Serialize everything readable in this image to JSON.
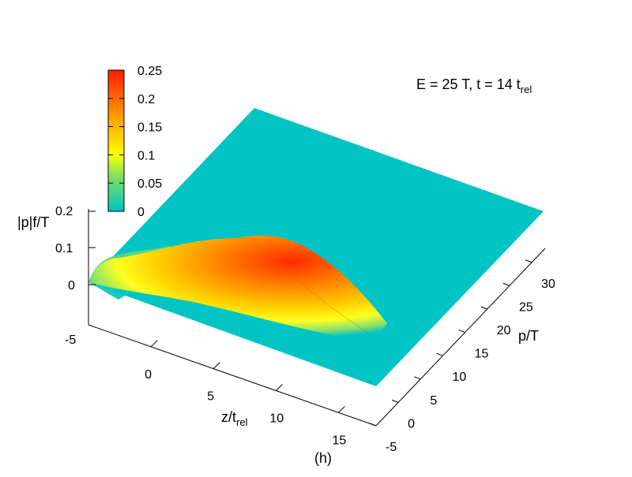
{
  "chart_data": {
    "type": "surface",
    "annotation": {
      "main": "E = 25 T, t = 14 t",
      "sub": "rel"
    },
    "panel_label": "(h)",
    "xlabel": {
      "main": "z/t",
      "sub": "rel"
    },
    "ylabel": "p/T",
    "zlabel": "|p|f/T",
    "x_ticks": [
      "0",
      "5",
      "10",
      "15"
    ],
    "x_tick_values": [
      0,
      5,
      10,
      15
    ],
    "xlim": [
      -5,
      18
    ],
    "y_ticks": [
      "-5",
      "0",
      "5",
      "10",
      "15",
      "20",
      "25",
      "30"
    ],
    "y_tick_values": [
      -5,
      0,
      5,
      10,
      15,
      20,
      25,
      30
    ],
    "ylim": [
      -5,
      33
    ],
    "z_ticks": [
      "-5",
      "0",
      "0.1",
      "0.2"
    ],
    "zlim": [
      0,
      0.2
    ],
    "colorbar": {
      "ticks": [
        "0",
        "0.05",
        "0.1",
        "0.15",
        "0.2",
        "0.25"
      ],
      "tick_values": [
        0,
        0.05,
        0.1,
        0.15,
        0.2,
        0.25
      ],
      "range": [
        0,
        0.25
      ],
      "colors": [
        "#00c4c4",
        "#ffff00",
        "#ffa500",
        "#ff0000"
      ]
    },
    "surface_peak": {
      "z": 11,
      "p": 6,
      "value": 0.25
    }
  }
}
